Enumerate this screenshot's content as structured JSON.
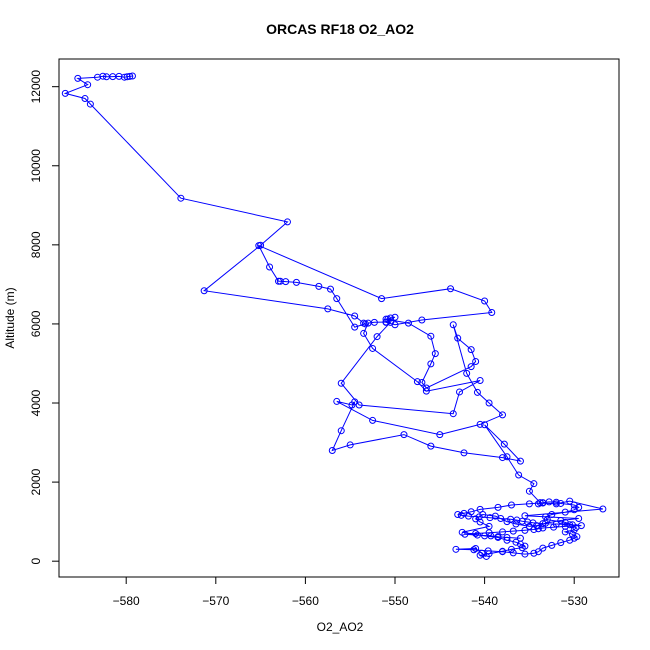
{
  "chart_data": {
    "type": "line",
    "title": "ORCAS RF18 O2_AO2",
    "xlabel": "O2_AO2",
    "ylabel": "Altitude (m)",
    "xlim": [
      -587.5,
      -525
    ],
    "ylim": [
      -400,
      12700
    ],
    "x_ticks": [
      -580,
      -570,
      -560,
      -550,
      -540,
      -530
    ],
    "y_ticks": [
      0,
      2000,
      4000,
      6000,
      8000,
      10000,
      12000
    ],
    "grid": false,
    "legend": "none",
    "line_color": "#0000ff",
    "marker": "open-circle",
    "series": [
      {
        "x": [
          -579.3,
          -579.6,
          -579.9,
          -580.2,
          -580.8,
          -581.5,
          -582.2,
          -582.6,
          -583.2,
          -585.4,
          -584.3,
          -586.8,
          -584.6,
          -584.0,
          -573.9,
          -562.0,
          -565.0,
          -571.3,
          -557.5,
          -554.5,
          -553.5,
          -553.3,
          -554.5,
          -556.5,
          -557.2,
          -558.5,
          -561.0,
          -562.2,
          -562.8,
          -563.0,
          -564.0,
          -565.2,
          -551.5,
          -543.8,
          -540.0,
          -539.2,
          -547.0,
          -550.0,
          -551.0,
          -550.5,
          -552.0,
          -556.0,
          -554.0,
          -543.5,
          -542.8,
          -540.5,
          -546.5,
          -547.5,
          -552.5,
          -553.5,
          -553.0,
          -552.3,
          -551.0,
          -550.8,
          -550.5,
          -550.0,
          -551.0,
          -548.5,
          -546.0,
          -545.5,
          -546.0,
          -547.0,
          -546.5,
          -541.5,
          -541.0,
          -541.5,
          -543.0,
          -543.5,
          -542.0,
          -540.8,
          -539.5,
          -538.0,
          -540.5,
          -545.0,
          -552.5,
          -556.5,
          -554.8,
          -554.5,
          -556.0,
          -557.0,
          -555.0,
          -549.0,
          -546.0,
          -542.3,
          -538.0,
          -536.0,
          -537.8,
          -540.0,
          -537.5,
          -536.2,
          -534.5,
          -535.0,
          -533.8,
          -534.0,
          -533.5,
          -532.0,
          -530.5,
          -526.8,
          -535.5,
          -529.5,
          -531.5,
          -533.2,
          -534.2,
          -535.0,
          -536.5,
          -537.5,
          -538.8,
          -540.2,
          -541.0,
          -540.5,
          -539.5,
          -542.5,
          -540.0,
          -538.5,
          -537.5,
          -536.5,
          -536.0,
          -535.5,
          -535.8,
          -537.0,
          -538.0,
          -539.5,
          -540.5,
          -539.8,
          -540.3,
          -541.0,
          -543.2,
          -541.2,
          -539.6,
          -538.0,
          -536.8,
          -535.5,
          -534.5,
          -534.0,
          -533.5,
          -532.5,
          -531.5,
          -530.5,
          -530.0,
          -529.7,
          -530.2,
          -531.0,
          -530.0,
          -529.8,
          -530.2,
          -531.0,
          -533.0,
          -533.2,
          -532.5,
          -531.0,
          -530.0,
          -529.5,
          -530.0,
          -531.5,
          -532.0,
          -532.8,
          -533.5,
          -535.0,
          -537.0,
          -538.5,
          -540.5,
          -541.5,
          -542.3,
          -543.0,
          -542.6,
          -541.8,
          -540.6,
          -539.4,
          -538.2,
          -537.1,
          -536.4,
          -535.8,
          -535.2,
          -534.6,
          -533.5,
          -532.0,
          -530.5,
          -529.2,
          -531.0,
          -532.3,
          -533.5,
          -534.0,
          -534.5,
          -535.5,
          -536.8,
          -538.0,
          -539.5,
          -541.0,
          -542.2,
          -540.8,
          -539.3,
          -538.5,
          -537.5,
          -536.0
        ],
        "y": [
          12270,
          12260,
          12250,
          12240,
          12260,
          12255,
          12250,
          12265,
          12240,
          12210,
          12050,
          11830,
          11700,
          11560,
          9180,
          8580,
          7990,
          6840,
          6380,
          6200,
          6020,
          6000,
          5920,
          6640,
          6880,
          6950,
          7050,
          7070,
          7080,
          7080,
          7440,
          7980,
          6640,
          6890,
          6580,
          6290,
          6100,
          5980,
          6040,
          6040,
          5680,
          4500,
          3950,
          3730,
          4280,
          4570,
          4300,
          4540,
          5380,
          5760,
          6020,
          6040,
          6050,
          6120,
          6150,
          6170,
          6120,
          6020,
          5690,
          5250,
          4990,
          4520,
          4380,
          4920,
          5050,
          5350,
          5640,
          5980,
          4750,
          4270,
          4000,
          3700,
          3460,
          3200,
          3560,
          4040,
          3950,
          4030,
          3300,
          2800,
          2940,
          3200,
          2910,
          2740,
          2620,
          2530,
          2960,
          3450,
          2640,
          2180,
          1960,
          1770,
          1480,
          1450,
          1470,
          1450,
          1520,
          1320,
          1150,
          1080,
          1030,
          960,
          900,
          880,
          940,
          1000,
          1140,
          1180,
          1070,
          990,
          880,
          730,
          640,
          600,
          530,
          480,
          430,
          380,
          340,
          300,
          250,
          190,
          150,
          120,
          200,
          320,
          300,
          290,
          260,
          240,
          210,
          180,
          200,
          240,
          330,
          400,
          470,
          530,
          580,
          620,
          680,
          740,
          790,
          850,
          920,
          980,
          1050,
          1120,
          1180,
          1240,
          1300,
          1360,
          1420,
          1460,
          1490,
          1500,
          1480,
          1450,
          1420,
          1360,
          1310,
          1250,
          1210,
          1180,
          1160,
          1140,
          1120,
          1100,
          1080,
          1060,
          1040,
          1010,
          990,
          970,
          950,
          940,
          920,
          900,
          880,
          860,
          840,
          820,
          800,
          780,
          760,
          740,
          720,
          700,
          680,
          660,
          640,
          620,
          600,
          580
        ]
      }
    ]
  }
}
